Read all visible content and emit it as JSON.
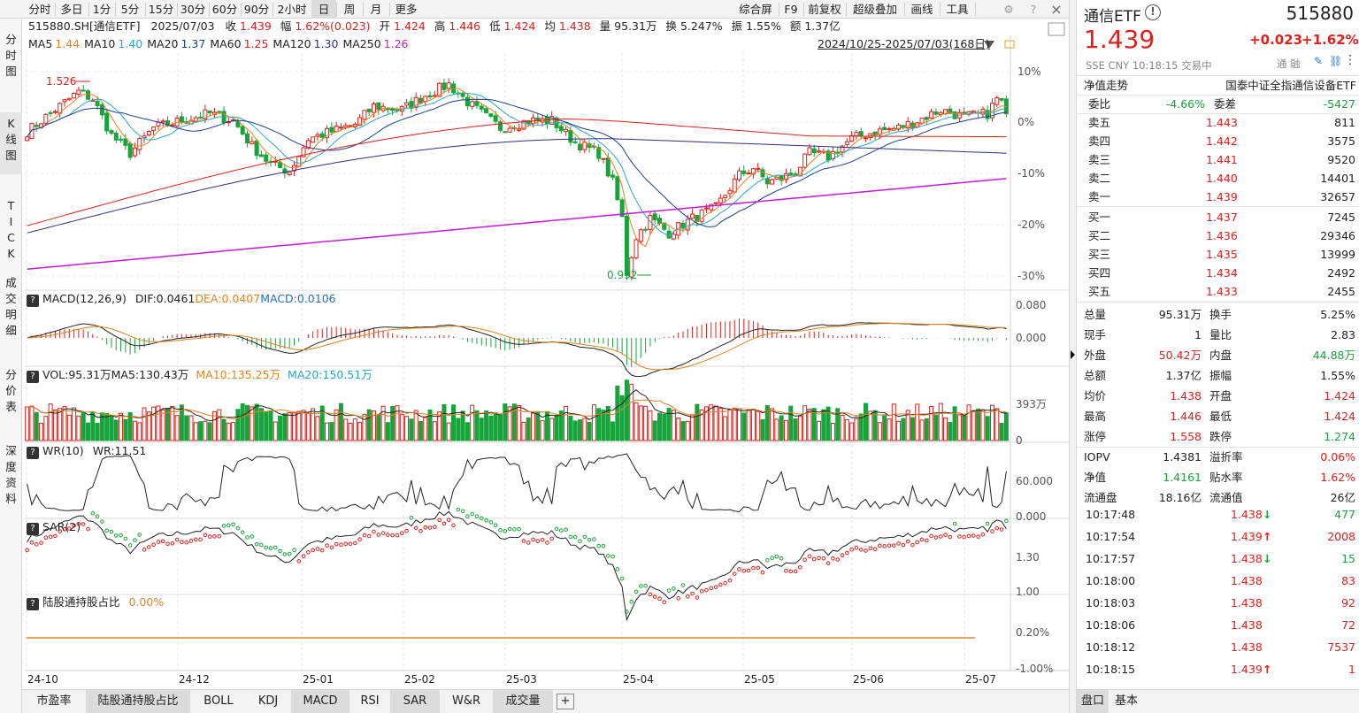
{
  "toolbar": {
    "periods": [
      "分时",
      "多日",
      "1分",
      "5分",
      "15分",
      "30分",
      "60分",
      "90分",
      "2小时",
      "日",
      "周",
      "月",
      "更多"
    ],
    "selected_period": "日",
    "right_buttons": [
      "综合屏",
      "F9",
      "前复权",
      "超级叠加",
      "画线",
      "工具"
    ]
  },
  "left_tabs": [
    {
      "label": "分时图"
    },
    {
      "label": "K线图"
    },
    {
      "label": "TICK"
    },
    {
      "label": "成交明细"
    },
    {
      "label": "分价表"
    },
    {
      "label": "深度资料"
    }
  ],
  "quote_line": {
    "code_name": "515880.SH[通信ETF]",
    "date": "2025/07/03",
    "close_label": "收",
    "close": "1.439",
    "change_label": "幅",
    "change": "1.62%(0.023)",
    "open_label": "开",
    "open": "1.424",
    "high_label": "高",
    "high": "1.446",
    "low_label": "低",
    "low": "1.424",
    "avg_label": "均",
    "avg": "1.438",
    "volume_label": "量",
    "volume": "95.31万",
    "turnover_label": "换",
    "turnover": "5.247%",
    "amplitude_label": "振",
    "amplitude": "1.55%",
    "amount_label": "额",
    "amount": "1.37亿"
  },
  "ma_legend": [
    {
      "label": "MA5",
      "value": "1.44",
      "color": "#e6821e"
    },
    {
      "label": "MA10",
      "value": "1.40",
      "color": "#2ea7c5"
    },
    {
      "label": "MA20",
      "value": "1.37",
      "color": "#1c3f8f"
    },
    {
      "label": "MA60",
      "value": "1.25",
      "color": "#e0201c"
    },
    {
      "label": "MA120",
      "value": "1.30",
      "color": "#303080"
    },
    {
      "label": "MA250",
      "value": "1.26",
      "color": "#c21cd6"
    }
  ],
  "date_range": "2024/10/25-2025/07/03(168日)",
  "annotations": {
    "high": "1.526",
    "low": "0.992"
  },
  "kline_axis": [
    "10%",
    "0%",
    "-10%",
    "-20%",
    "-30%"
  ],
  "macd": {
    "title": "MACD(12,26,9)",
    "dif": "DIF:0.0461",
    "dea": "DEA:0.0407",
    "macd": "MACD:0.0106",
    "axis": [
      "0.080",
      "0.000"
    ]
  },
  "vol": {
    "title": "VOL:95.31万",
    "ma5": "MA5:130.43万",
    "ma10": "MA10:135.25万",
    "ma20": "MA20:150.51万",
    "axis": [
      "393万",
      "0"
    ]
  },
  "wr": {
    "title": "WR(10)",
    "value": "WR:11.51",
    "axis": [
      "60.000",
      "0.000"
    ]
  },
  "sar": {
    "title": "SAR(2)",
    "axis": [
      "1.30",
      "1.00"
    ]
  },
  "lgt": {
    "title": "陆股通持股占比",
    "value": "0.00%",
    "axis": [
      "0.20%",
      "-1.00%"
    ]
  },
  "x_labels": [
    "24-10",
    "24-12",
    "25-01",
    "25-02",
    "25-03",
    "25-04",
    "25-05",
    "25-06",
    "25-07"
  ],
  "bottom_tabs": [
    "市盈率",
    "陆股通持股占比",
    "BOLL",
    "KDJ",
    "MACD",
    "RSI",
    "SAR",
    "W&R",
    "成交量"
  ],
  "bottom_selected": [
    "MACD",
    "SAR",
    "成交量",
    "陆股通持股占比"
  ],
  "chart_data": {
    "type": "candlestick",
    "title": "515880.SH[通信ETF]",
    "period": "日",
    "date_range": "2024/10/25-2025/07/03",
    "count": 168,
    "last": {
      "date": "2025/07/03",
      "open": 1.424,
      "high": 1.446,
      "low": 1.424,
      "close": 1.439
    },
    "range_high": 1.526,
    "range_low": 0.992,
    "pct_axis": [
      10,
      0,
      -10,
      -20,
      -30
    ],
    "macd_latest": {
      "dif": 0.0461,
      "dea": 0.0407,
      "macd": 0.0106
    },
    "vol_latest": {
      "vol": "95.31万",
      "ma5": "130.43万",
      "ma10": "135.25万",
      "ma20": "150.51万"
    },
    "wr_latest": 11.51,
    "ma_latest": {
      "MA5": 1.44,
      "MA10": 1.4,
      "MA20": 1.37,
      "MA60": 1.25,
      "MA120": 1.3,
      "MA250": 1.26
    }
  },
  "right_panel": {
    "name": "通信ETF",
    "code": "515880",
    "price": "1.439",
    "change": "+0.023",
    "change_pct": "+1.62%",
    "meta": "SSE  CNY  10:18:15  交易中",
    "meta_right": "通 融",
    "nav_label": "净值走势",
    "index_name": "国泰中证全指通信设备ETF",
    "wb_label": "委比",
    "wb_value": "-4.66%",
    "wc_label": "委差",
    "wc_value": "-5427",
    "asks": [
      {
        "label": "卖五",
        "price": "1.443",
        "vol": "811"
      },
      {
        "label": "卖四",
        "price": "1.442",
        "vol": "3575"
      },
      {
        "label": "卖三",
        "price": "1.441",
        "vol": "9520"
      },
      {
        "label": "卖二",
        "price": "1.440",
        "vol": "14401"
      },
      {
        "label": "卖一",
        "price": "1.439",
        "vol": "32657"
      }
    ],
    "bids": [
      {
        "label": "买一",
        "price": "1.437",
        "vol": "7245"
      },
      {
        "label": "买二",
        "price": "1.436",
        "vol": "29346"
      },
      {
        "label": "买三",
        "price": "1.435",
        "vol": "13999"
      },
      {
        "label": "买四",
        "price": "1.434",
        "vol": "2492"
      },
      {
        "label": "买五",
        "price": "1.433",
        "vol": "2455"
      }
    ],
    "stats": [
      [
        {
          "l": "总量",
          "v": "95.31万",
          "c": ""
        },
        {
          "l": "换手",
          "v": "5.25%",
          "c": ""
        }
      ],
      [
        {
          "l": "现手",
          "v": "1",
          "c": ""
        },
        {
          "l": "量比",
          "v": "2.83",
          "c": ""
        }
      ],
      [
        {
          "l": "外盘",
          "v": "50.42万",
          "c": "red"
        },
        {
          "l": "内盘",
          "v": "44.88万",
          "c": "green"
        }
      ],
      [
        {
          "l": "总额",
          "v": "1.37亿",
          "c": ""
        },
        {
          "l": "振幅",
          "v": "1.55%",
          "c": ""
        }
      ],
      [
        {
          "l": "均价",
          "v": "1.438",
          "c": "red"
        },
        {
          "l": "开盘",
          "v": "1.424",
          "c": "red"
        }
      ],
      [
        {
          "l": "最高",
          "v": "1.446",
          "c": "red"
        },
        {
          "l": "最低",
          "v": "1.424",
          "c": "red"
        }
      ],
      [
        {
          "l": "涨停",
          "v": "1.558",
          "c": "red"
        },
        {
          "l": "跌停",
          "v": "1.274",
          "c": "green"
        }
      ]
    ],
    "stats2": [
      [
        {
          "l": "IOPV",
          "v": "1.4381",
          "c": ""
        },
        {
          "l": "溢折率",
          "v": "0.06%",
          "c": "red"
        }
      ],
      [
        {
          "l": "净值",
          "v": "1.4161",
          "c": "green"
        },
        {
          "l": "贴水率",
          "v": "1.62%",
          "c": "red"
        }
      ],
      [
        {
          "l": "流通盘",
          "v": "18.16亿",
          "c": ""
        },
        {
          "l": "流通值",
          "v": "26亿",
          "c": ""
        }
      ]
    ],
    "ticks": [
      {
        "t": "10:17:48",
        "p": "1.438",
        "d": "down",
        "v": "477"
      },
      {
        "t": "10:17:54",
        "p": "1.439",
        "d": "up",
        "v": "2008"
      },
      {
        "t": "10:17:57",
        "p": "1.438",
        "d": "down",
        "v": "15"
      },
      {
        "t": "10:18:00",
        "p": "1.438",
        "d": "",
        "v": "83"
      },
      {
        "t": "10:18:03",
        "p": "1.438",
        "d": "",
        "v": "92"
      },
      {
        "t": "10:18:06",
        "p": "1.438",
        "d": "",
        "v": "72"
      },
      {
        "t": "10:18:12",
        "p": "1.438",
        "d": "",
        "v": "7537"
      },
      {
        "t": "10:18:15",
        "p": "1.439",
        "d": "up",
        "v": "1"
      }
    ],
    "bottom_tabs": [
      "盘口",
      "基本"
    ]
  },
  "colors": {
    "up": "#e0201c",
    "down": "#17a43b",
    "grid": "#e6e6e6"
  }
}
